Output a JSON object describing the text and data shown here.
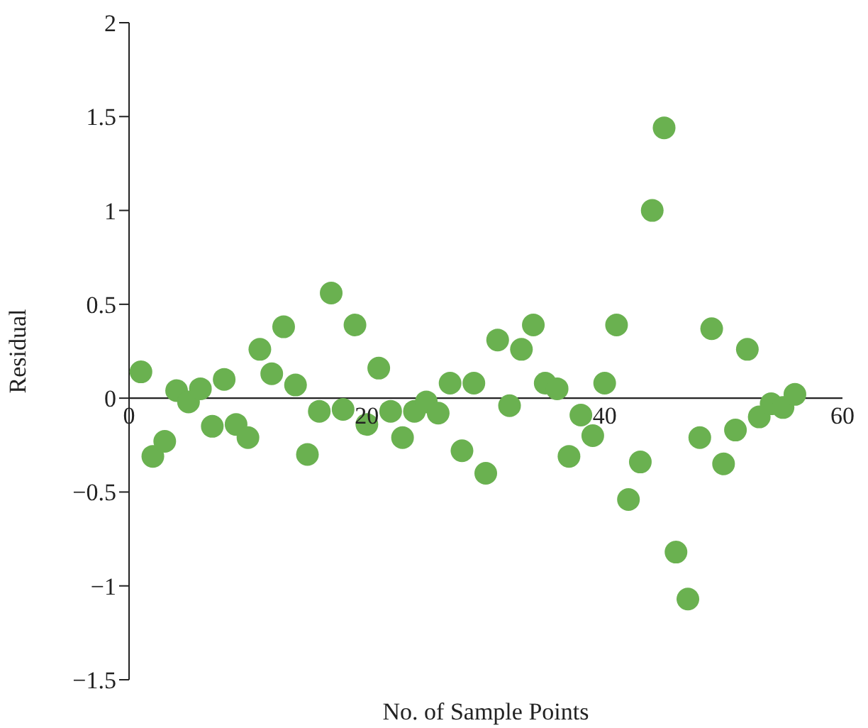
{
  "chart_data": {
    "type": "scatter",
    "xlabel": "No. of Sample Points",
    "ylabel": "Residual",
    "x": [
      1,
      2,
      3,
      4,
      5,
      6,
      7,
      8,
      9,
      10,
      11,
      12,
      13,
      14,
      15,
      16,
      17,
      18,
      19,
      20,
      21,
      22,
      23,
      24,
      25,
      26,
      27,
      28,
      29,
      30,
      31,
      32,
      33,
      34,
      35,
      36,
      37,
      38,
      39,
      40,
      41,
      42,
      43,
      44,
      45,
      46,
      47,
      48,
      49,
      50,
      51,
      52,
      53,
      54,
      55,
      56
    ],
    "series": [
      {
        "color": "#6ab150",
        "values": [
          0.14,
          -0.31,
          -0.23,
          0.04,
          -0.02,
          0.05,
          -0.15,
          0.1,
          -0.14,
          -0.21,
          0.26,
          0.13,
          0.38,
          0.07,
          -0.3,
          -0.07,
          0.56,
          -0.06,
          0.39,
          -0.14,
          0.16,
          -0.07,
          -0.21,
          -0.07,
          -0.02,
          -0.08,
          0.08,
          -0.28,
          0.08,
          -0.4,
          0.31,
          -0.04,
          0.26,
          0.39,
          0.08,
          0.05,
          -0.31,
          -0.09,
          -0.2,
          0.08,
          0.39,
          -0.54,
          -0.34,
          1.0,
          1.44,
          -0.82,
          -1.07,
          -0.21,
          0.37,
          -0.35,
          -0.17,
          0.26,
          -0.1,
          -0.03,
          -0.05,
          0.02
        ]
      }
    ],
    "xlim": [
      0,
      60
    ],
    "xticks": [
      0,
      20,
      40,
      60
    ],
    "ylim": [
      -1.5,
      2
    ],
    "yticks": [
      {
        "value": -1.5,
        "label": "−1.5"
      },
      {
        "value": -1,
        "label": "−1"
      },
      {
        "value": -0.5,
        "label": "−0.5"
      },
      0,
      0.5,
      1,
      1.5,
      2
    ],
    "marker": "circle",
    "grid": false,
    "legend": false
  }
}
